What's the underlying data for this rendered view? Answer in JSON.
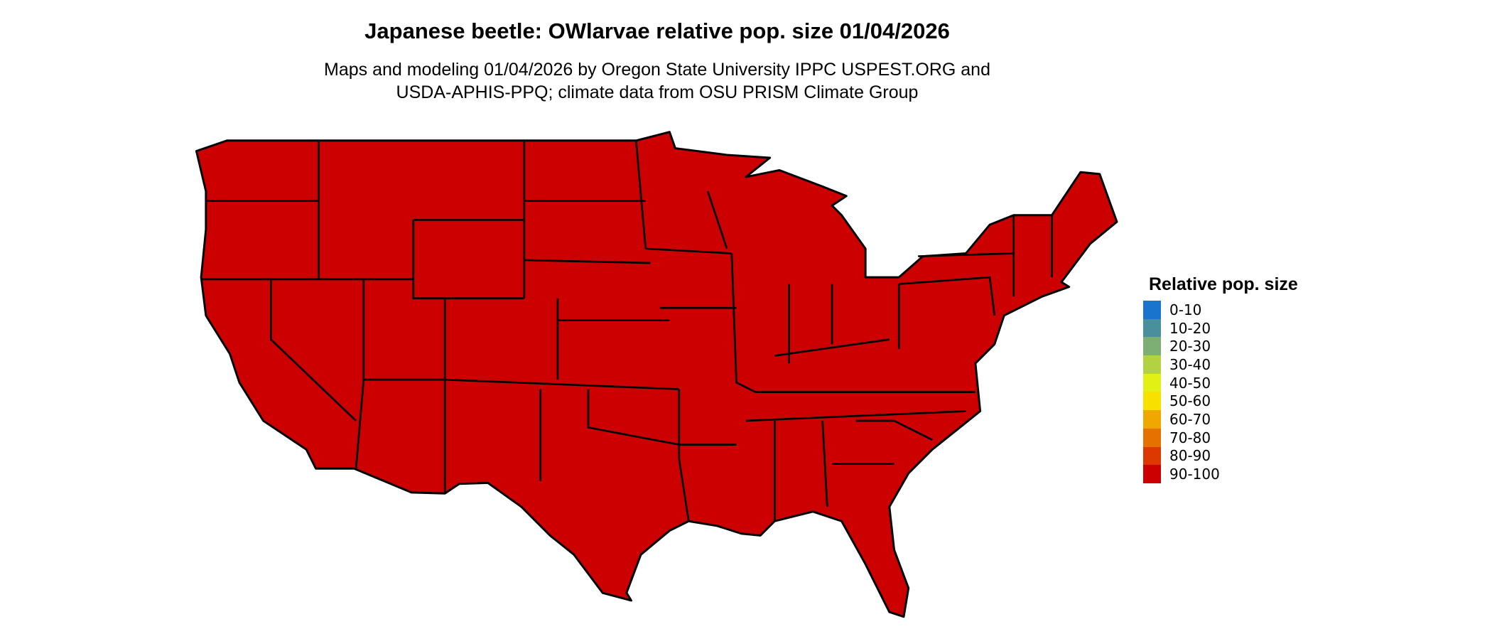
{
  "title": "Japanese beetle: OWlarvae relative pop. size 01/04/2026",
  "subtitle_line1": "Maps and modeling 01/04/2026 by Oregon State University IPPC USPEST.ORG and",
  "subtitle_line2": "USDA-APHIS-PPQ; climate data from OSU PRISM Climate Group",
  "map": {
    "region": "Contiguous United States with state boundaries",
    "fill_class": "90-100",
    "fill_color": "#CC0000",
    "border_color": "#000000"
  },
  "legend": {
    "title": "Relative pop. size",
    "items": [
      {
        "label": "0-10",
        "color": "#1874CD"
      },
      {
        "label": "10-20",
        "color": "#4A8F9C"
      },
      {
        "label": "20-30",
        "color": "#7DAE74"
      },
      {
        "label": "30-40",
        "color": "#B2D143"
      },
      {
        "label": "40-50",
        "color": "#E3F016"
      },
      {
        "label": "50-60",
        "color": "#F8E000"
      },
      {
        "label": "60-70",
        "color": "#F0A800"
      },
      {
        "label": "70-80",
        "color": "#E57200"
      },
      {
        "label": "80-90",
        "color": "#DD3800"
      },
      {
        "label": "90-100",
        "color": "#CC0000"
      }
    ]
  }
}
